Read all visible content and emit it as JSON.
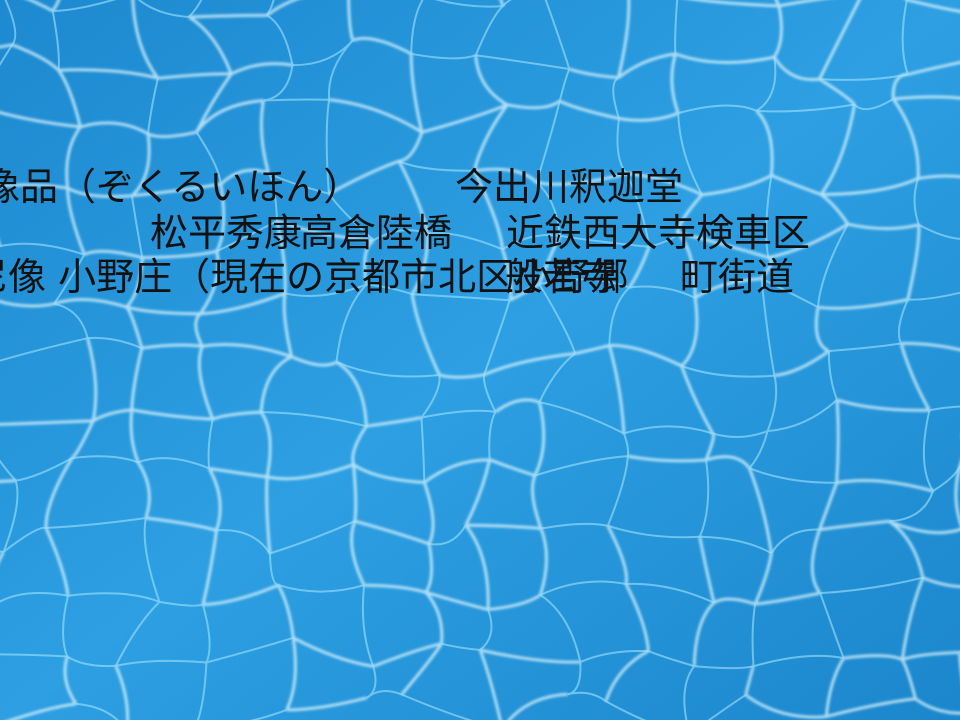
{
  "scene": {
    "description_colors": {
      "deep": "#0f6fb8",
      "mid": "#2a9be0",
      "light": "#7fd3ff",
      "highlight": "#e8fbff",
      "text": "#111111"
    }
  },
  "overlay_texts": [
    "像品（ぞくるいほん）",
    "今出川釈迦堂",
    "松平秀康",
    "高倉陸橋",
    "近鉄西大寺検車区",
    "尼像 小野庄（現在の京都市北区小野郷",
    "般若寺",
    "町街道"
  ]
}
